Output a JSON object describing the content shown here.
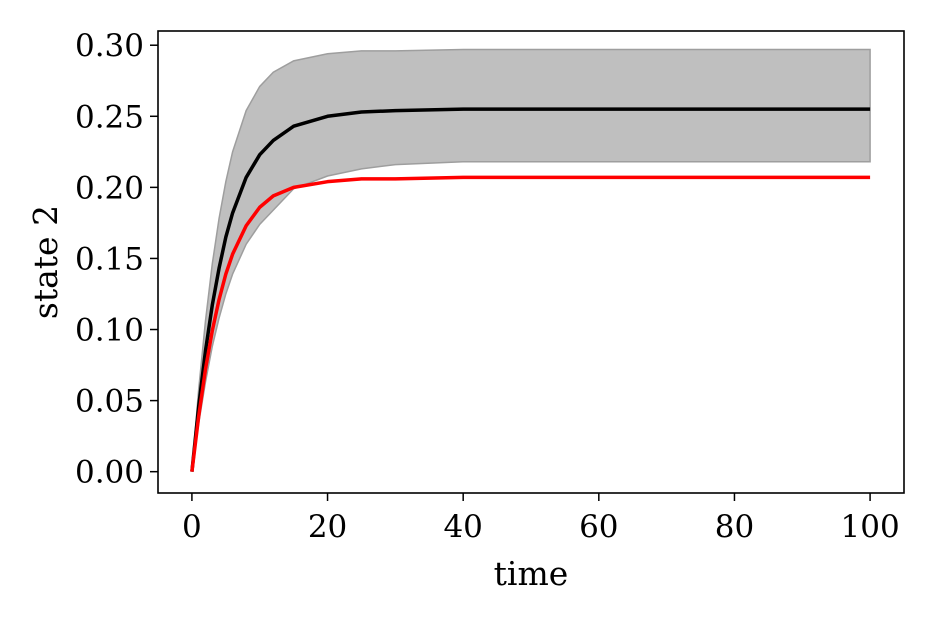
{
  "chart_data": {
    "type": "line",
    "xlabel": "time",
    "ylabel": "state 2",
    "xlim": [
      -5,
      105
    ],
    "ylim": [
      -0.015,
      0.31
    ],
    "xticks": [
      0,
      20,
      40,
      60,
      80,
      100
    ],
    "xtick_labels": [
      "0",
      "20",
      "40",
      "60",
      "80",
      "100"
    ],
    "yticks": [
      0.0,
      0.05,
      0.1,
      0.15,
      0.2,
      0.25,
      0.3
    ],
    "ytick_labels": [
      "0.00",
      "0.05",
      "0.10",
      "0.15",
      "0.20",
      "0.25",
      "0.30"
    ],
    "grid": false,
    "band": {
      "color": "#bfbfbf",
      "edge_color": "#9e9e9e",
      "x": [
        0,
        1,
        2,
        3,
        4,
        5,
        6,
        8,
        10,
        12,
        15,
        20,
        25,
        30,
        40,
        50,
        60,
        80,
        100
      ],
      "lower": [
        0.0,
        0.034,
        0.063,
        0.088,
        0.108,
        0.125,
        0.139,
        0.16,
        0.174,
        0.184,
        0.199,
        0.208,
        0.213,
        0.216,
        0.218,
        0.218,
        0.218,
        0.218,
        0.218
      ],
      "upper": [
        0.0,
        0.058,
        0.106,
        0.146,
        0.178,
        0.204,
        0.225,
        0.254,
        0.271,
        0.281,
        0.289,
        0.294,
        0.296,
        0.296,
        0.297,
        0.297,
        0.297,
        0.297,
        0.297
      ]
    },
    "series": [
      {
        "color": "#000000",
        "x": [
          0,
          1,
          2,
          3,
          4,
          5,
          6,
          8,
          10,
          12,
          15,
          20,
          25,
          30,
          40,
          50,
          60,
          80,
          100
        ],
        "values": [
          0.0,
          0.046,
          0.085,
          0.117,
          0.143,
          0.165,
          0.182,
          0.207,
          0.223,
          0.233,
          0.243,
          0.25,
          0.253,
          0.254,
          0.255,
          0.255,
          0.255,
          0.255,
          0.255
        ]
      },
      {
        "color": "#ff0000",
        "x": [
          0,
          1,
          2,
          3,
          4,
          5,
          6,
          8,
          10,
          12,
          15,
          20,
          25,
          30,
          40,
          50,
          60,
          80,
          100
        ],
        "values": [
          0.0,
          0.039,
          0.072,
          0.099,
          0.121,
          0.139,
          0.153,
          0.173,
          0.186,
          0.194,
          0.2,
          0.204,
          0.206,
          0.206,
          0.207,
          0.207,
          0.207,
          0.207,
          0.207
        ]
      }
    ]
  }
}
